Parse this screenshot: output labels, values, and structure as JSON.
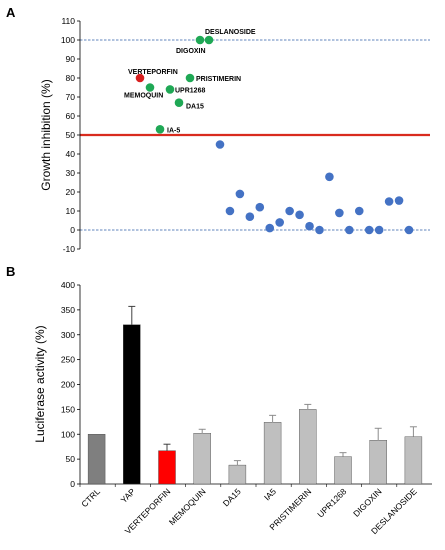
{
  "chart_data": [
    {
      "panel_label": "A",
      "type": "scatter",
      "ylabel": "Growth inhibition (%)",
      "ylim": [
        -10,
        110
      ],
      "yticks": [
        -10,
        0,
        10,
        20,
        30,
        40,
        50,
        60,
        70,
        80,
        90,
        100,
        110
      ],
      "grid": false,
      "reference_lines": [
        {
          "y": 100,
          "style": "dashed",
          "color": "#2e5fa8"
        },
        {
          "y": 0,
          "style": "dashed",
          "color": "#2e5fa8"
        },
        {
          "y": 50,
          "style": "solid",
          "color": "#d92b1e"
        }
      ],
      "colors": {
        "highlight": "#d81f1f",
        "hit": "#1fa855",
        "other": "#4472c4"
      },
      "points": [
        {
          "x": 1,
          "y": 80,
          "group": "highlight",
          "label": "VERTEPORFIN"
        },
        {
          "x": 2,
          "y": 75,
          "group": "hit",
          "label": "MEMOQUIN"
        },
        {
          "x": 3,
          "y": 53,
          "group": "hit",
          "label": "IA-5"
        },
        {
          "x": 4,
          "y": 74,
          "group": "hit",
          "label": "UPR1268"
        },
        {
          "x": 5,
          "y": 67,
          "group": "hit",
          "label": "DA15"
        },
        {
          "x": 6,
          "y": 100,
          "group": "hit",
          "label": "DIGOXIN"
        },
        {
          "x": 7,
          "y": 100,
          "group": "hit",
          "label": "DESLANOSIDE"
        },
        {
          "x": 8,
          "y": 80,
          "group": "hit",
          "label": "PRISTIMERIN"
        },
        {
          "x": 9,
          "y": 45,
          "group": "other"
        },
        {
          "x": 10,
          "y": 10,
          "group": "other"
        },
        {
          "x": 11,
          "y": 19,
          "group": "other"
        },
        {
          "x": 12,
          "y": 7,
          "group": "other"
        },
        {
          "x": 13,
          "y": 12,
          "group": "other"
        },
        {
          "x": 14,
          "y": 1,
          "group": "other"
        },
        {
          "x": 15,
          "y": 4,
          "group": "other"
        },
        {
          "x": 16,
          "y": 10,
          "group": "other"
        },
        {
          "x": 17,
          "y": 8,
          "group": "other"
        },
        {
          "x": 18,
          "y": 2,
          "group": "other"
        },
        {
          "x": 19,
          "y": 0,
          "group": "other"
        },
        {
          "x": 20,
          "y": 28,
          "group": "other"
        },
        {
          "x": 21,
          "y": 9,
          "group": "other"
        },
        {
          "x": 22,
          "y": 0,
          "group": "other"
        },
        {
          "x": 23,
          "y": 10,
          "group": "other"
        },
        {
          "x": 24,
          "y": 0,
          "group": "other"
        },
        {
          "x": 25,
          "y": 0,
          "group": "other"
        },
        {
          "x": 26,
          "y": 15,
          "group": "other"
        },
        {
          "x": 27,
          "y": 15.5,
          "group": "other"
        },
        {
          "x": 28,
          "y": 0,
          "group": "other"
        }
      ]
    },
    {
      "panel_label": "B",
      "type": "bar",
      "ylabel": "Luciferase activity (%)",
      "ylim": [
        0,
        400
      ],
      "yticks": [
        0,
        50,
        100,
        150,
        200,
        250,
        300,
        350,
        400
      ],
      "grid": false,
      "categories": [
        "CTRL",
        "YAP",
        "VERTEPORFIN",
        "MEMOQUIN",
        "DA15",
        "IA5",
        "PRISTIMERIN",
        "UPR1268",
        "DIGOXIN",
        "DESLANOSIDE"
      ],
      "values": [
        100,
        320,
        67,
        102,
        38,
        124,
        150,
        55,
        88,
        95
      ],
      "errors": [
        0,
        37,
        13,
        8,
        9,
        14,
        10,
        8,
        24,
        20
      ],
      "bar_colors": [
        "#7f7f7f",
        "#000000",
        "#ff0000",
        "#bfbfbf",
        "#bfbfbf",
        "#bfbfbf",
        "#bfbfbf",
        "#bfbfbf",
        "#bfbfbf",
        "#bfbfbf"
      ]
    }
  ]
}
